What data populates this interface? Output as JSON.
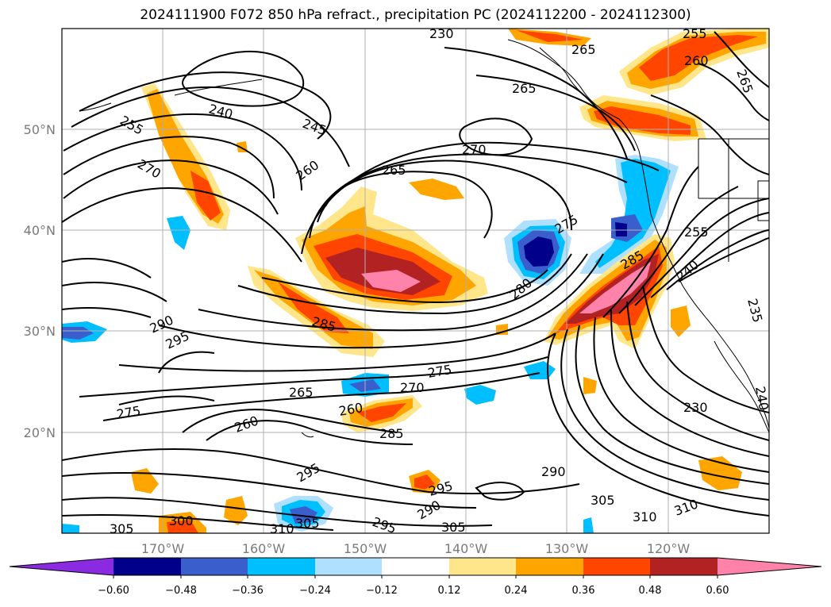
{
  "title": "2024111900 F072 850 hPa refract., precipitation PC (2024112200 - 2024112300)",
  "map": {
    "lon_labels": [
      "170°W",
      "160°W",
      "150°W",
      "140°W",
      "130°W",
      "120°W"
    ],
    "lat_labels": [
      "50°N",
      "40°N",
      "30°N",
      "20°N"
    ],
    "contour_labels": [
      "230",
      "255",
      "265",
      "260",
      "265",
      "265",
      "240",
      "245",
      "270",
      "255",
      "270",
      "260",
      "265",
      "275",
      "255",
      "280",
      "285",
      "240",
      "290",
      "295",
      "285",
      "275",
      "265",
      "270",
      "260",
      "285",
      "275",
      "260",
      "230",
      "290",
      "305",
      "295",
      "295",
      "290",
      "310",
      "310",
      "300",
      "305",
      "310",
      "305",
      "295",
      "305",
      "235",
      "240"
    ]
  },
  "colorbar": {
    "ticks": [
      "−0.60",
      "−0.48",
      "−0.36",
      "−0.24",
      "−0.12",
      "0.12",
      "0.24",
      "0.36",
      "0.48",
      "0.60"
    ],
    "colors": [
      "#8a2be2",
      "#00008b",
      "#3a5fcd",
      "#00bfff",
      "#b0e0ff",
      "#ffffff",
      "#ffe68a",
      "#ffa500",
      "#ff4500",
      "#b22222",
      "#ff82ab"
    ]
  }
}
